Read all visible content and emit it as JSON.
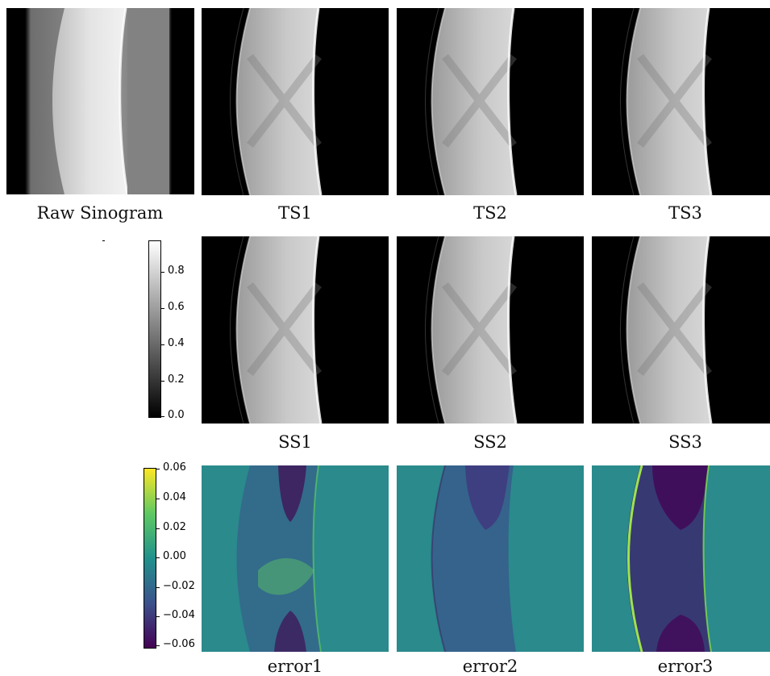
{
  "rows": [
    {
      "panels": [
        {
          "label": "Raw Sinogram",
          "kind": "raw"
        },
        {
          "label": "TS1",
          "kind": "sino"
        },
        {
          "label": "TS2",
          "kind": "sino"
        },
        {
          "label": "TS3",
          "kind": "sino"
        }
      ]
    },
    {
      "panels": [
        {
          "label": "SS1",
          "kind": "sino"
        },
        {
          "label": "SS2",
          "kind": "sino"
        },
        {
          "label": "SS3",
          "kind": "sino"
        }
      ]
    },
    {
      "panels": [
        {
          "label": "error1",
          "kind": "error"
        },
        {
          "label": "error2",
          "kind": "error"
        },
        {
          "label": "error3",
          "kind": "error"
        }
      ]
    }
  ],
  "gray_colorbar": {
    "colormap": "gray",
    "ticks": [
      "0.8",
      "0.6",
      "0.4",
      "0.2",
      "0.0"
    ],
    "range": [
      0.0,
      0.97
    ]
  },
  "error_colorbar": {
    "colormap": "viridis",
    "ticks": [
      "0.06",
      "0.04",
      "0.02",
      "0.00",
      "−0.02",
      "−0.04",
      "−0.06"
    ],
    "range": [
      -0.06,
      0.06
    ]
  },
  "colors": {
    "viridis_low": "#440154",
    "viridis_mid": "#21908d",
    "viridis_high": "#fde725",
    "error_background": "#2a8a8c"
  }
}
